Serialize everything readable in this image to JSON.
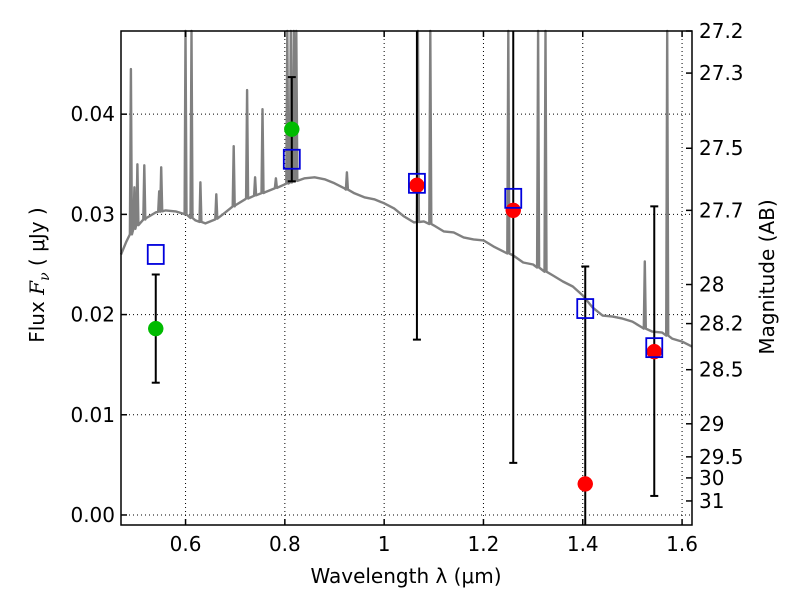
{
  "chart_data": {
    "type": "scatter",
    "xlabel": "Wavelength  λ (μm)",
    "ylabel": {
      "prefix": "Flux  ",
      "var": "F",
      "sub": "ν",
      "open": "  ( ",
      "unit": "μJy",
      "close": " )"
    },
    "y2label": "Magnitude (AB)",
    "xlim": [
      0.47,
      1.62
    ],
    "ylim": [
      -0.001,
      0.0483
    ],
    "grid": true,
    "x_ticks": [
      0.6,
      0.8,
      1.0,
      1.2,
      1.4,
      1.6
    ],
    "x_tick_labels": [
      "0.6",
      "0.8",
      "1",
      "1.2",
      "1.4",
      "1.6"
    ],
    "y_ticks": [
      0.0,
      0.01,
      0.02,
      0.03,
      0.04
    ],
    "y_tick_labels": [
      "0.00",
      "0.01",
      "0.02",
      "0.03",
      "0.04"
    ],
    "mag_ticks": [
      {
        "label": "27.2",
        "flux": 0.0483
      },
      {
        "label": "27.3",
        "flux": 0.0441
      },
      {
        "label": "27.5",
        "flux": 0.0366
      },
      {
        "label": "27.7",
        "flux": 0.0304
      },
      {
        "label": "28",
        "flux": 0.023
      },
      {
        "label": "28.2",
        "flux": 0.0191
      },
      {
        "label": "28.5",
        "flux": 0.0145
      },
      {
        "label": "29",
        "flux": 0.0091
      },
      {
        "label": "29.5",
        "flux": 0.0058
      },
      {
        "label": "30",
        "flux": 0.0037
      },
      {
        "label": "31",
        "flux": 0.0014
      }
    ],
    "series": [
      {
        "name": "observed (green)",
        "color": "#00bb00",
        "marker": "circle",
        "points": [
          {
            "x": 0.54,
            "y": 0.0186,
            "yerr_low": 0.0132,
            "yerr_high": 0.024
          },
          {
            "x": 0.814,
            "y": 0.0385,
            "yerr_low": 0.0333,
            "yerr_high": 0.0437
          }
        ]
      },
      {
        "name": "observed (red)",
        "color": "#ff0000",
        "marker": "circle",
        "points": [
          {
            "x": 1.066,
            "y": 0.0329,
            "yerr_low": 0.0175,
            "yerr_high": 0.0483
          },
          {
            "x": 1.26,
            "y": 0.0304,
            "yerr_low": 0.0052,
            "yerr_high": 0.0483
          },
          {
            "x": 1.405,
            "y": 0.0031,
            "yerr_low": -0.001,
            "yerr_high": 0.0248
          },
          {
            "x": 1.544,
            "y": 0.0163,
            "yerr_low": 0.0019,
            "yerr_high": 0.0308
          }
        ]
      },
      {
        "name": "model (blue squares)",
        "color": "#0000dd",
        "marker": "square",
        "points": [
          {
            "x": 0.54,
            "y": 0.026
          },
          {
            "x": 0.814,
            "y": 0.0355
          },
          {
            "x": 1.066,
            "y": 0.0331
          },
          {
            "x": 1.26,
            "y": 0.0316
          },
          {
            "x": 1.405,
            "y": 0.0206
          },
          {
            "x": 1.544,
            "y": 0.0167
          }
        ]
      }
    ],
    "spectrum": {
      "color": "#808080",
      "continuum": [
        [
          0.47,
          0.026
        ],
        [
          0.48,
          0.0272
        ],
        [
          0.5,
          0.0288
        ],
        [
          0.52,
          0.0296
        ],
        [
          0.54,
          0.0302
        ],
        [
          0.56,
          0.0304
        ],
        [
          0.58,
          0.0303
        ],
        [
          0.6,
          0.03
        ],
        [
          0.62,
          0.0294
        ],
        [
          0.64,
          0.0291
        ],
        [
          0.66,
          0.0295
        ],
        [
          0.68,
          0.0302
        ],
        [
          0.7,
          0.0309
        ],
        [
          0.72,
          0.0315
        ],
        [
          0.74,
          0.0319
        ],
        [
          0.76,
          0.0322
        ],
        [
          0.78,
          0.0326
        ],
        [
          0.8,
          0.033
        ],
        [
          0.82,
          0.0333
        ],
        [
          0.84,
          0.0336
        ],
        [
          0.86,
          0.0337
        ],
        [
          0.88,
          0.0335
        ],
        [
          0.9,
          0.0331
        ],
        [
          0.92,
          0.0326
        ],
        [
          0.94,
          0.0321
        ],
        [
          0.96,
          0.0317
        ],
        [
          0.98,
          0.0315
        ],
        [
          1.0,
          0.0311
        ],
        [
          1.02,
          0.0306
        ],
        [
          1.04,
          0.0298
        ],
        [
          1.06,
          0.0292
        ],
        [
          1.08,
          0.0293
        ],
        [
          1.1,
          0.0289
        ],
        [
          1.12,
          0.0283
        ],
        [
          1.14,
          0.0282
        ],
        [
          1.16,
          0.0277
        ],
        [
          1.18,
          0.0275
        ],
        [
          1.2,
          0.0274
        ],
        [
          1.22,
          0.0268
        ],
        [
          1.24,
          0.0263
        ],
        [
          1.26,
          0.0259
        ],
        [
          1.28,
          0.0252
        ],
        [
          1.3,
          0.025
        ],
        [
          1.32,
          0.0244
        ],
        [
          1.34,
          0.0239
        ],
        [
          1.36,
          0.0233
        ],
        [
          1.38,
          0.0228
        ],
        [
          1.4,
          0.0219
        ],
        [
          1.42,
          0.0207
        ],
        [
          1.44,
          0.0199
        ],
        [
          1.46,
          0.0198
        ],
        [
          1.48,
          0.0196
        ],
        [
          1.5,
          0.0193
        ],
        [
          1.52,
          0.0187
        ],
        [
          1.54,
          0.0183
        ],
        [
          1.56,
          0.0182
        ],
        [
          1.58,
          0.0176
        ],
        [
          1.6,
          0.0173
        ],
        [
          1.62,
          0.0168
        ]
      ],
      "lines": [
        [
          0.49,
          0.0445
        ],
        [
          0.497,
          0.0327
        ],
        [
          0.503,
          0.035
        ],
        [
          0.517,
          0.0349
        ],
        [
          0.547,
          0.0323
        ],
        [
          0.551,
          0.0347
        ],
        [
          0.6,
          0.0483
        ],
        [
          0.612,
          0.0483
        ],
        [
          0.63,
          0.0332
        ],
        [
          0.662,
          0.032
        ],
        [
          0.697,
          0.0368
        ],
        [
          0.724,
          0.0424
        ],
        [
          0.74,
          0.0337
        ],
        [
          0.755,
          0.0405
        ],
        [
          0.782,
          0.0336
        ],
        [
          0.805,
          0.0483
        ],
        [
          0.812,
          0.0483
        ],
        [
          0.818,
          0.0483
        ],
        [
          0.823,
          0.0483
        ],
        [
          0.925,
          0.0342
        ],
        [
          1.068,
          0.0483
        ],
        [
          1.093,
          0.0483
        ],
        [
          1.25,
          0.0483
        ],
        [
          1.31,
          0.0483
        ],
        [
          1.325,
          0.0483
        ],
        [
          1.525,
          0.0253
        ],
        [
          1.57,
          0.0483
        ]
      ]
    }
  }
}
